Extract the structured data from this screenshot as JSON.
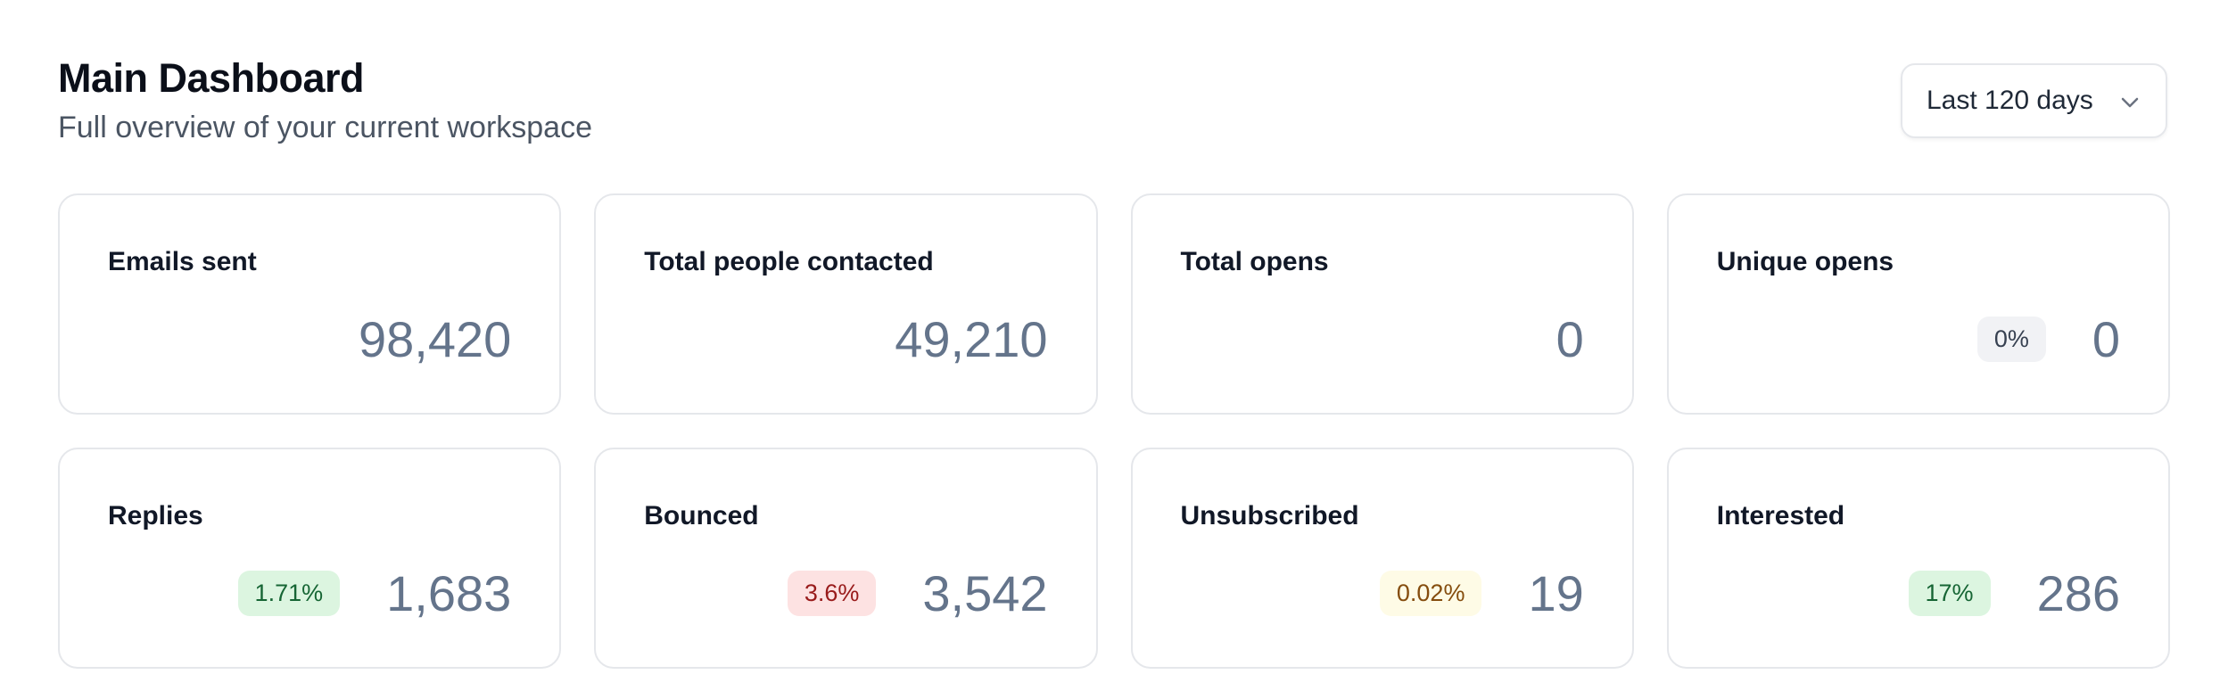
{
  "header": {
    "title": "Main Dashboard",
    "subtitle": "Full overview of your current workspace"
  },
  "range_selector": "Last 120 days",
  "cards": [
    {
      "label": "Emails sent",
      "value": "98,420"
    },
    {
      "label": "Total people contacted",
      "value": "49,210"
    },
    {
      "label": "Total opens",
      "value": "0"
    },
    {
      "label": "Unique opens",
      "value": "0",
      "badge": "0%",
      "badge_color": "#374151",
      "badge_background": "#f1f2f5"
    },
    {
      "label": "Replies",
      "value": "1,683",
      "badge": "1.71%",
      "badge_color": "#166534",
      "badge_background": "#dcf5e0"
    },
    {
      "label": "Bounced",
      "value": "3,542",
      "badge": "3.6%",
      "badge_color": "#991b1b",
      "badge_background": "#fde2e2"
    },
    {
      "label": "Unsubscribed",
      "value": "19",
      "badge": "0.02%",
      "badge_color": "#854d0e",
      "badge_background": "#fefbe6"
    },
    {
      "label": "Interested",
      "value": "286",
      "badge": "17%",
      "badge_color": "#166534",
      "badge_background": "#dcf5e0"
    }
  ]
}
